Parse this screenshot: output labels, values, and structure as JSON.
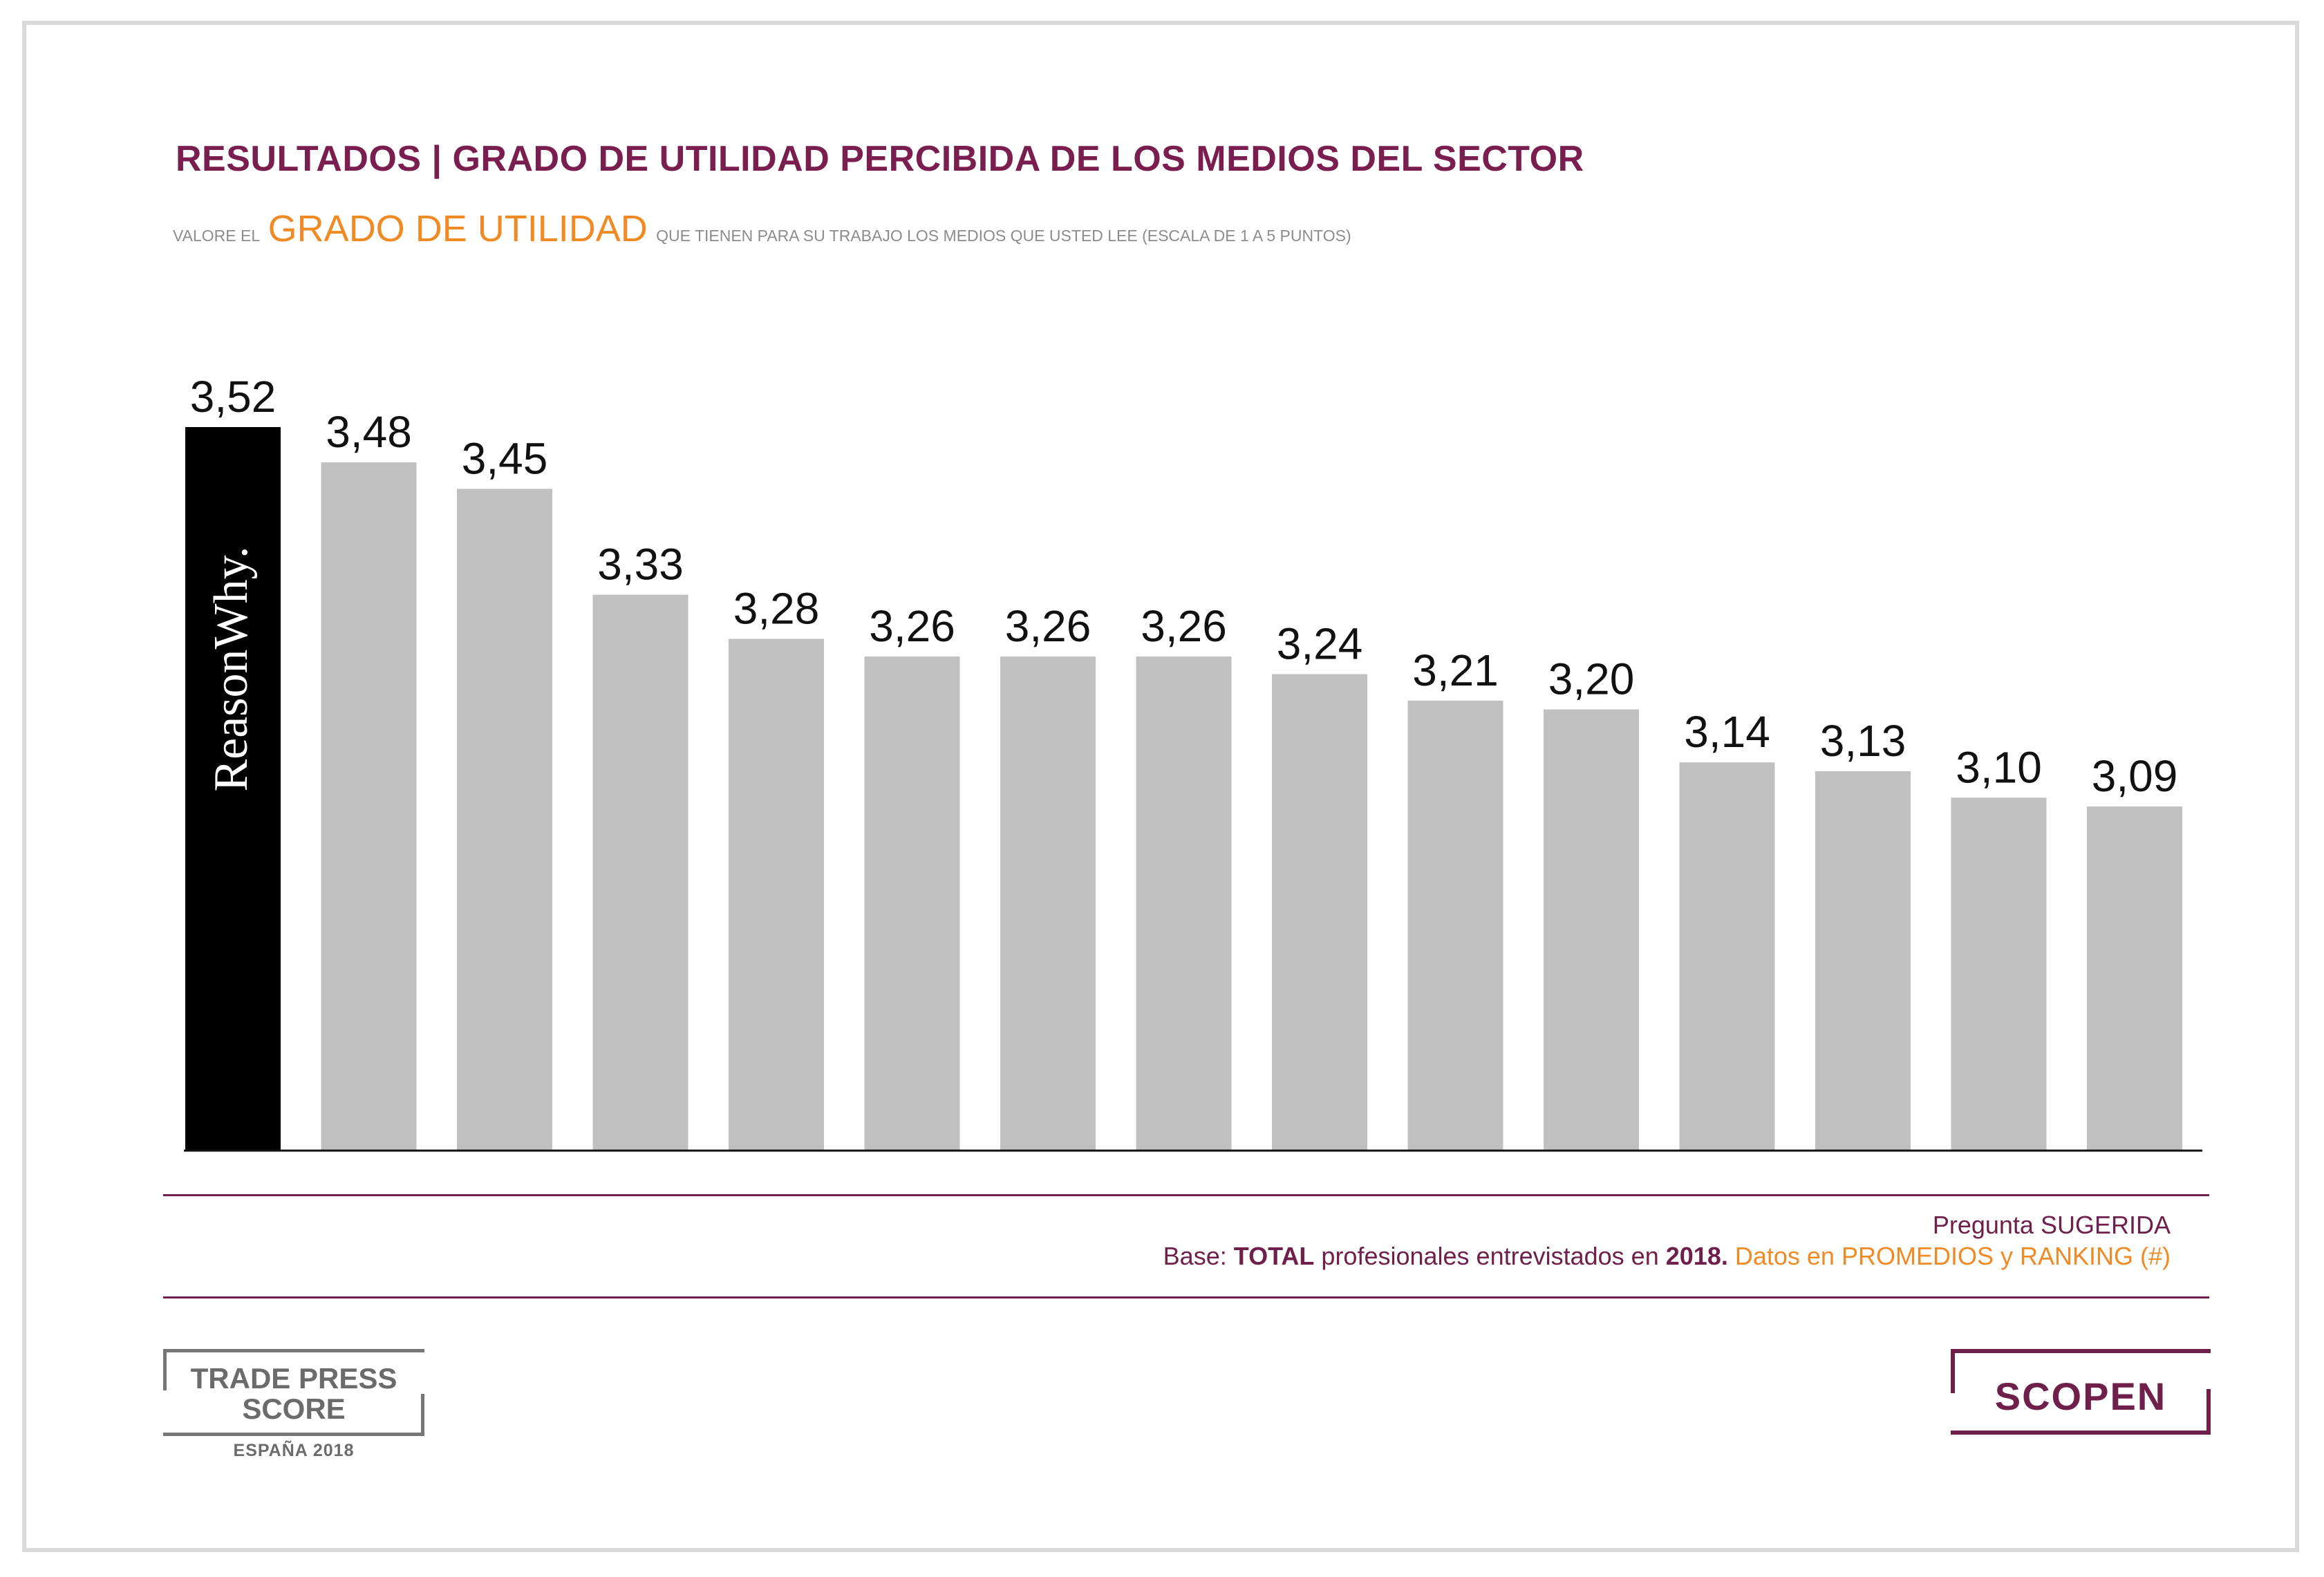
{
  "header": {
    "title": "RESULTADOS | GRADO DE UTILIDAD PERCIBIDA DE LOS MEDIOS DEL SECTOR",
    "subtitle_pre": "VALORE EL",
    "subtitle_highlight": "GRADO DE UTILIDAD",
    "subtitle_post": "QUE TIENEN PARA SU TRABAJO LOS MEDIOS QUE USTED LEE (ESCALA DE 1 A 5 PUNTOS)"
  },
  "chart_data": {
    "type": "bar",
    "title": "RESULTADOS | GRADO DE UTILIDAD PERCIBIDA DE LOS MEDIOS DEL SECTOR",
    "categories": [
      "ReasonWhy.",
      "",
      "",
      "",
      "",
      "",
      "",
      "",
      "",
      "",
      "",
      "",
      "",
      "",
      ""
    ],
    "values": [
      3.52,
      3.48,
      3.45,
      3.33,
      3.28,
      3.26,
      3.26,
      3.26,
      3.24,
      3.21,
      3.2,
      3.14,
      3.13,
      3.1,
      3.09
    ],
    "labels": [
      "3,52",
      "3,48",
      "3,45",
      "3,33",
      "3,28",
      "3,26",
      "3,26",
      "3,26",
      "3,24",
      "3,21",
      "3,20",
      "3,14",
      "3,13",
      "3,10",
      "3,09"
    ],
    "highlight_index": 0,
    "colors": {
      "highlight": "#000000",
      "default": "#c0c0c0",
      "axis": "#111111"
    },
    "ylim": [
      2.7,
      3.6
    ],
    "grid": false,
    "legend": "none"
  },
  "footer": {
    "note_line1": "Pregunta SUGERIDA",
    "note_base": "Base:",
    "note_total": "TOTAL",
    "note_mid": "profesionales entrevistados en",
    "note_year": "2018.",
    "note_orange": "Datos en PROMEDIOS y RANKING (#)"
  },
  "logos": {
    "tps_line1": "TRADE PRESS",
    "tps_line2": "SCORE",
    "tps_line3": "ESPAÑA 2018",
    "scopen": "SCOPEN"
  },
  "colors": {
    "brand": "#7a1e4f",
    "accent": "#f08a24",
    "frame": "#d9d9d9"
  }
}
